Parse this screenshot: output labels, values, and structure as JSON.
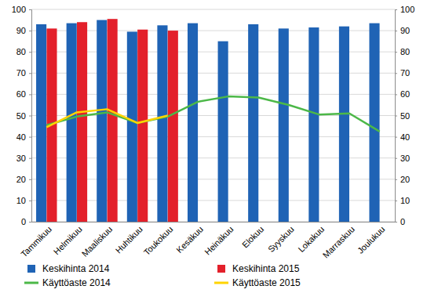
{
  "chart_data": {
    "type": "bar",
    "categories": [
      "Tammikuu",
      "Helmikuu",
      "Maaliskuu",
      "Huhtikuu",
      "Toukokuu",
      "Kesäkuu",
      "Heinäkuu",
      "Elokuu",
      "Syyskuu",
      "Lokakuu",
      "Marraskuu",
      "Joulukuu"
    ],
    "series": [
      {
        "name": "Keskihinta 2014",
        "type": "bar",
        "color": "#1f63b5",
        "values": [
          93,
          93.5,
          95,
          89.5,
          92.5,
          93.5,
          85,
          93,
          91,
          91.5,
          92,
          93.5
        ]
      },
      {
        "name": "Keskihinta 2015",
        "type": "bar",
        "color": "#e3202b",
        "values": [
          91,
          94,
          95.5,
          90.5,
          90,
          null,
          null,
          null,
          null,
          null,
          null,
          null
        ]
      },
      {
        "name": "Käyttöaste 2014",
        "type": "line",
        "color": "#4cb848",
        "axis": "y2",
        "values": [
          45.5,
          49.5,
          51.5,
          46.5,
          49.5,
          56.5,
          59,
          58.5,
          55,
          50.5,
          51,
          42.5
        ]
      },
      {
        "name": "Käyttöaste 2015",
        "type": "line",
        "color": "#ffd400",
        "axis": "y2",
        "values": [
          44.5,
          51.5,
          53,
          46.5,
          50,
          null,
          null,
          null,
          null,
          null,
          null,
          null
        ]
      }
    ],
    "ylim": [
      0,
      100
    ],
    "yticks": [
      0,
      10,
      20,
      30,
      40,
      50,
      60,
      70,
      80,
      90,
      100
    ],
    "y2lim": [
      0,
      100
    ],
    "y2ticks": [
      0,
      10,
      20,
      30,
      40,
      50,
      60,
      70,
      80,
      90,
      100
    ],
    "grid": true,
    "legend": "bottom"
  }
}
